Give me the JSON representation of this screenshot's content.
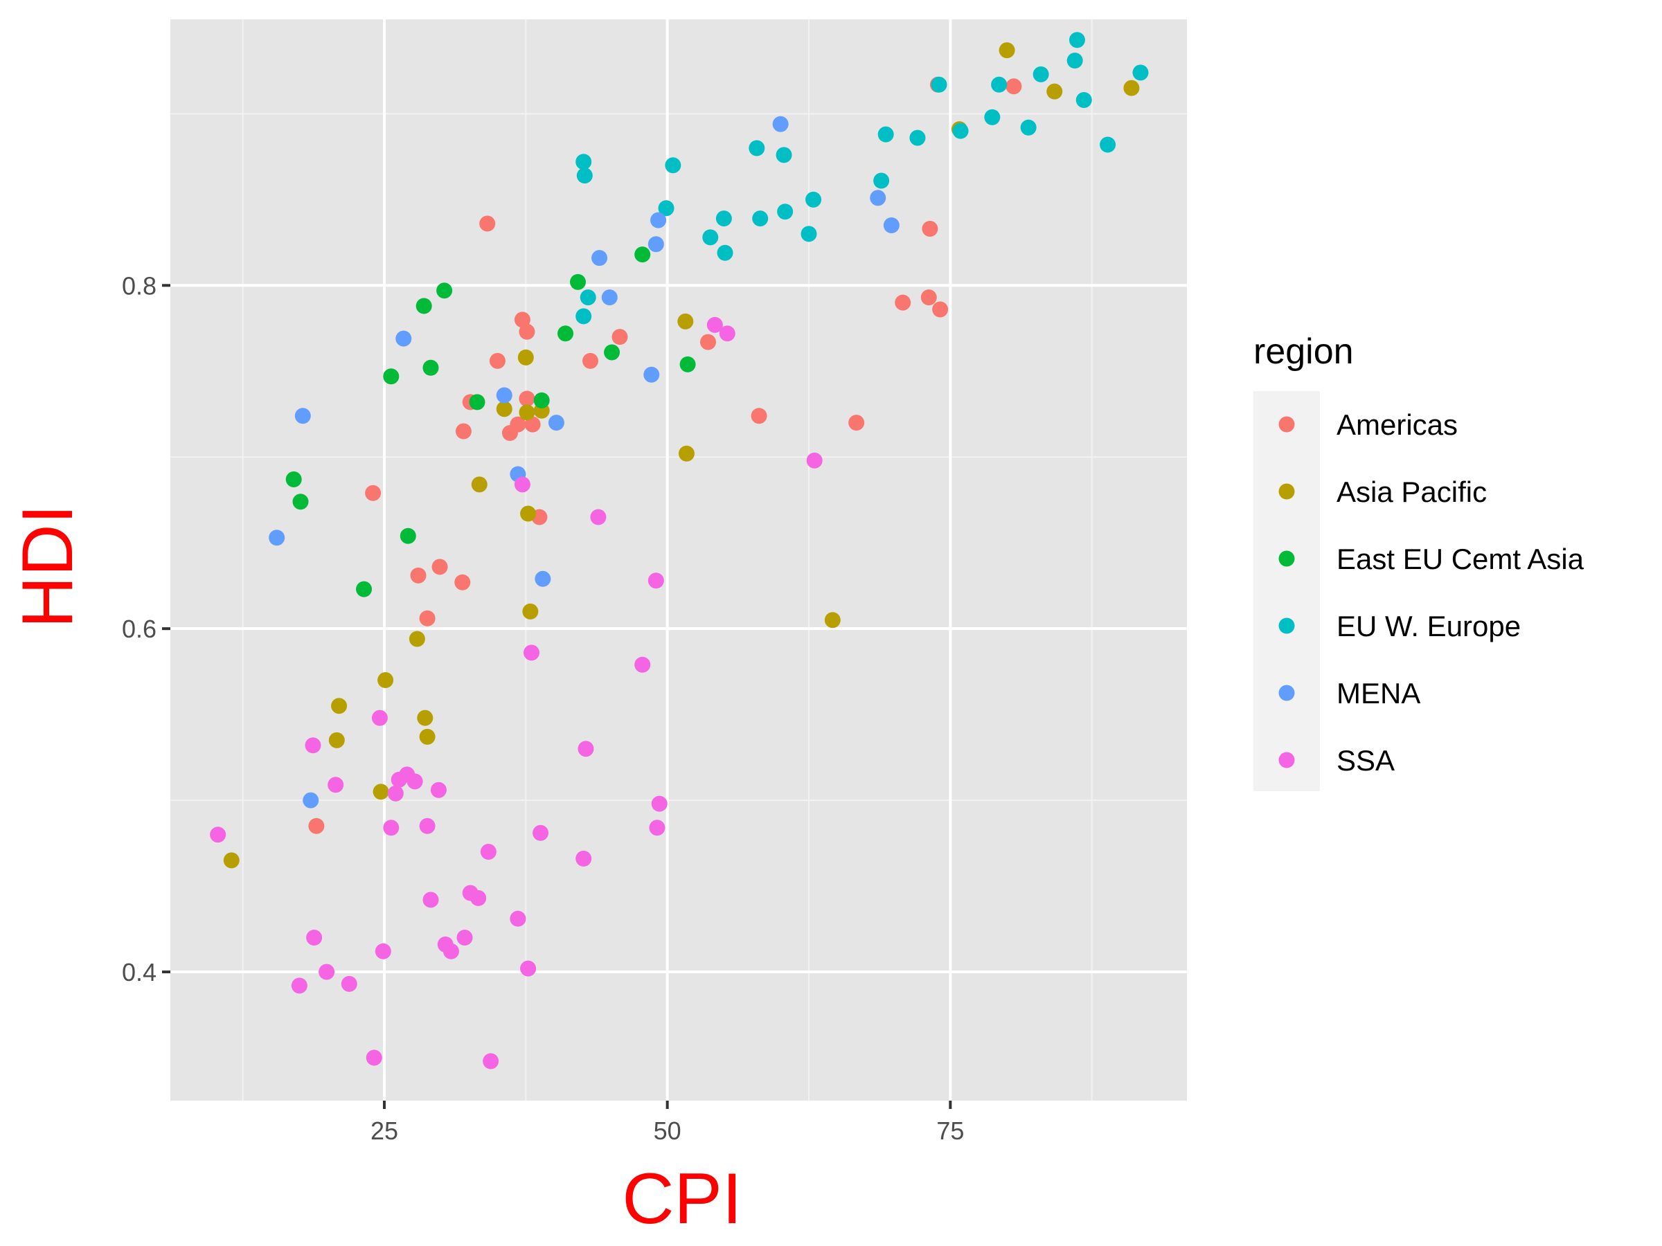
{
  "chart_data": {
    "type": "scatter",
    "title": "",
    "xlabel": "CPI",
    "ylabel": "HDI",
    "axis_title_color": "#ff0000",
    "xlim": [
      6.1,
      95.9
    ],
    "ylim": [
      0.325,
      0.955
    ],
    "x_ticks": [
      25,
      50,
      75
    ],
    "x_tick_labels": [
      "25",
      "50",
      "75"
    ],
    "y_ticks": [
      0.4,
      0.6,
      0.8
    ],
    "y_tick_labels": [
      "0.4",
      "0.6",
      "0.8"
    ],
    "panel_background": "#e5e5e5",
    "grid": true,
    "legend": {
      "title": "region",
      "position": "right"
    },
    "series": [
      {
        "name": "Americas",
        "color": "#f8766d",
        "points": [
          [
            34.1,
            0.836
          ],
          [
            80.6,
            0.916
          ],
          [
            73.9,
            0.917
          ],
          [
            73.2,
            0.833
          ],
          [
            73.1,
            0.793
          ],
          [
            74.1,
            0.786
          ],
          [
            70.8,
            0.79
          ],
          [
            66.7,
            0.72
          ],
          [
            58.1,
            0.724
          ],
          [
            53.6,
            0.767
          ],
          [
            45.8,
            0.77
          ],
          [
            43.2,
            0.756
          ],
          [
            35.0,
            0.756
          ],
          [
            37.2,
            0.78
          ],
          [
            37.6,
            0.773
          ],
          [
            37.6,
            0.734
          ],
          [
            36.8,
            0.719
          ],
          [
            36.1,
            0.714
          ],
          [
            38.1,
            0.719
          ],
          [
            32.6,
            0.732
          ],
          [
            32.0,
            0.715
          ],
          [
            24.0,
            0.679
          ],
          [
            38.7,
            0.665
          ],
          [
            29.9,
            0.636
          ],
          [
            28.0,
            0.631
          ],
          [
            31.9,
            0.627
          ],
          [
            28.8,
            0.606
          ],
          [
            19.0,
            0.485
          ]
        ]
      },
      {
        "name": "Asia Pacific",
        "color": "#b79f00",
        "points": [
          [
            80.0,
            0.937
          ],
          [
            84.2,
            0.913
          ],
          [
            75.8,
            0.891
          ],
          [
            91.0,
            0.915
          ],
          [
            51.6,
            0.779
          ],
          [
            37.5,
            0.758
          ],
          [
            35.6,
            0.728
          ],
          [
            37.6,
            0.726
          ],
          [
            38.9,
            0.727
          ],
          [
            51.7,
            0.702
          ],
          [
            33.4,
            0.684
          ],
          [
            37.7,
            0.667
          ],
          [
            37.9,
            0.61
          ],
          [
            64.6,
            0.605
          ],
          [
            27.9,
            0.594
          ],
          [
            25.1,
            0.57
          ],
          [
            21.0,
            0.555
          ],
          [
            28.6,
            0.548
          ],
          [
            20.8,
            0.535
          ],
          [
            28.8,
            0.537
          ],
          [
            24.7,
            0.505
          ],
          [
            11.5,
            0.465
          ]
        ]
      },
      {
        "name": "East EU Cemt Asia",
        "color": "#00ba38",
        "points": [
          [
            42.1,
            0.802
          ],
          [
            30.3,
            0.797
          ],
          [
            28.5,
            0.788
          ],
          [
            47.8,
            0.818
          ],
          [
            41.0,
            0.772
          ],
          [
            45.1,
            0.761
          ],
          [
            51.8,
            0.754
          ],
          [
            29.1,
            0.752
          ],
          [
            25.6,
            0.747
          ],
          [
            33.2,
            0.732
          ],
          [
            38.9,
            0.733
          ],
          [
            17.0,
            0.687
          ],
          [
            17.6,
            0.674
          ],
          [
            27.1,
            0.654
          ],
          [
            23.2,
            0.623
          ]
        ]
      },
      {
        "name": "EU W. Europe",
        "color": "#00bfc4",
        "points": [
          [
            86.2,
            0.943
          ],
          [
            91.8,
            0.924
          ],
          [
            86.0,
            0.931
          ],
          [
            83.0,
            0.923
          ],
          [
            86.8,
            0.908
          ],
          [
            79.3,
            0.917
          ],
          [
            74.0,
            0.917
          ],
          [
            81.9,
            0.892
          ],
          [
            88.9,
            0.882
          ],
          [
            78.7,
            0.898
          ],
          [
            75.9,
            0.89
          ],
          [
            69.3,
            0.888
          ],
          [
            72.1,
            0.886
          ],
          [
            57.9,
            0.88
          ],
          [
            60.3,
            0.876
          ],
          [
            50.5,
            0.87
          ],
          [
            42.6,
            0.872
          ],
          [
            42.7,
            0.864
          ],
          [
            68.9,
            0.861
          ],
          [
            62.9,
            0.85
          ],
          [
            49.9,
            0.845
          ],
          [
            60.4,
            0.843
          ],
          [
            55.0,
            0.839
          ],
          [
            58.2,
            0.839
          ],
          [
            53.8,
            0.828
          ],
          [
            62.5,
            0.83
          ],
          [
            55.1,
            0.819
          ],
          [
            43.0,
            0.793
          ],
          [
            42.6,
            0.782
          ]
        ]
      },
      {
        "name": "MENA",
        "color": "#619cff",
        "points": [
          [
            60.0,
            0.894
          ],
          [
            68.6,
            0.851
          ],
          [
            69.8,
            0.835
          ],
          [
            49.2,
            0.838
          ],
          [
            49.0,
            0.824
          ],
          [
            44.0,
            0.816
          ],
          [
            44.9,
            0.793
          ],
          [
            26.7,
            0.769
          ],
          [
            48.6,
            0.748
          ],
          [
            35.6,
            0.736
          ],
          [
            40.2,
            0.72
          ],
          [
            17.8,
            0.724
          ],
          [
            36.8,
            0.69
          ],
          [
            15.5,
            0.653
          ],
          [
            39.0,
            0.629
          ],
          [
            18.5,
            0.5
          ]
        ]
      },
      {
        "name": "SSA",
        "color": "#f564e3",
        "points": [
          [
            54.2,
            0.777
          ],
          [
            55.3,
            0.772
          ],
          [
            63.0,
            0.698
          ],
          [
            37.2,
            0.684
          ],
          [
            43.9,
            0.665
          ],
          [
            49.0,
            0.628
          ],
          [
            38.0,
            0.586
          ],
          [
            47.8,
            0.579
          ],
          [
            24.6,
            0.548
          ],
          [
            18.7,
            0.532
          ],
          [
            42.8,
            0.53
          ],
          [
            20.7,
            0.509
          ],
          [
            26.3,
            0.512
          ],
          [
            27.0,
            0.515
          ],
          [
            27.7,
            0.511
          ],
          [
            26.0,
            0.504
          ],
          [
            29.8,
            0.506
          ],
          [
            49.3,
            0.498
          ],
          [
            10.3,
            0.48
          ],
          [
            25.6,
            0.484
          ],
          [
            28.8,
            0.485
          ],
          [
            38.8,
            0.481
          ],
          [
            49.1,
            0.484
          ],
          [
            34.2,
            0.47
          ],
          [
            42.6,
            0.466
          ],
          [
            32.6,
            0.446
          ],
          [
            33.3,
            0.443
          ],
          [
            29.1,
            0.442
          ],
          [
            36.8,
            0.431
          ],
          [
            18.8,
            0.42
          ],
          [
            32.1,
            0.42
          ],
          [
            30.4,
            0.416
          ],
          [
            30.9,
            0.412
          ],
          [
            24.9,
            0.412
          ],
          [
            19.9,
            0.4
          ],
          [
            37.7,
            0.402
          ],
          [
            17.5,
            0.392
          ],
          [
            21.9,
            0.393
          ],
          [
            24.1,
            0.35
          ],
          [
            34.4,
            0.348
          ]
        ]
      }
    ]
  }
}
